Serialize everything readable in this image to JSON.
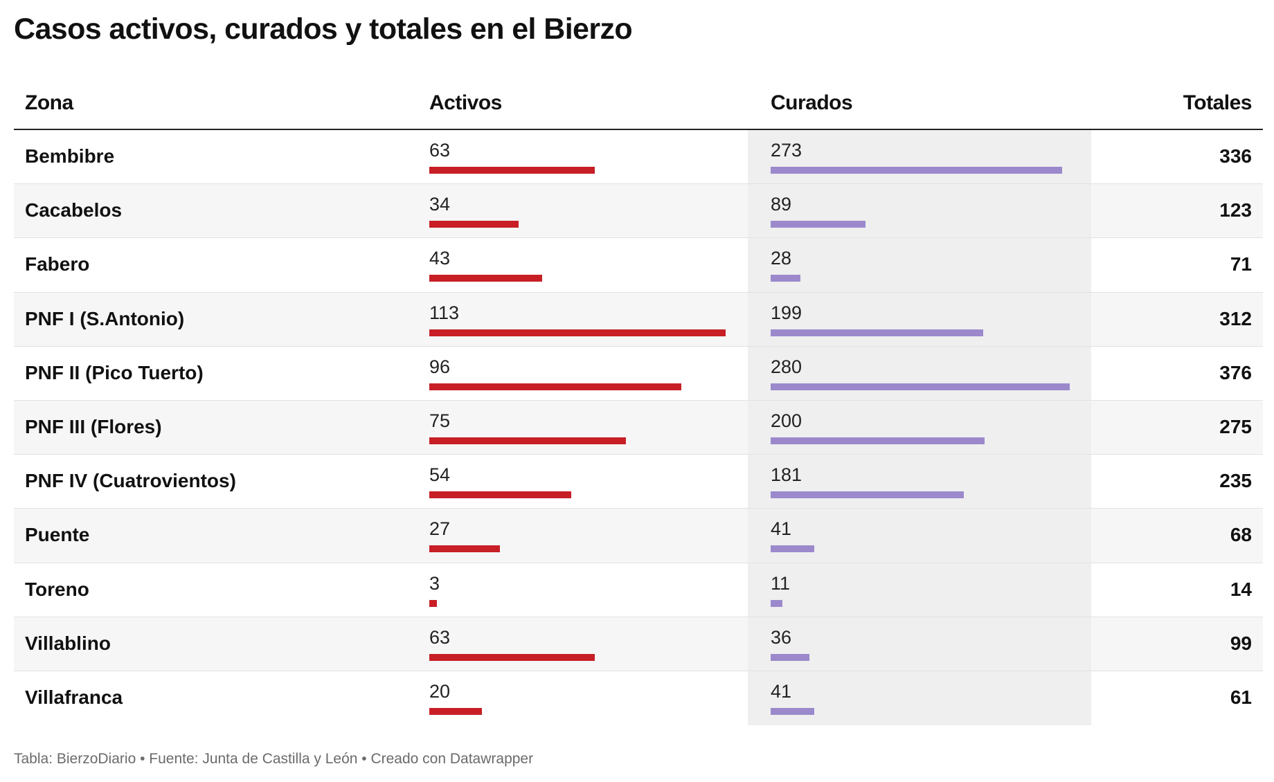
{
  "title": "Casos activos, curados y totales en el Bierzo",
  "columns": {
    "zona": "Zona",
    "activos": "Activos",
    "curados": "Curados",
    "totales": "Totales"
  },
  "colors": {
    "activos": "#c71f25",
    "curados": "#9b89cc"
  },
  "footer": "Tabla: BierzoDiario • Fuente: Junta de Castilla y León • Creado con Datawrapper",
  "chart_data": {
    "type": "table",
    "columns": [
      "Zona",
      "Activos",
      "Curados",
      "Totales"
    ],
    "rows": [
      {
        "zona": "Bembibre",
        "activos": 63,
        "curados": 273,
        "totales": 336
      },
      {
        "zona": "Cacabelos",
        "activos": 34,
        "curados": 89,
        "totales": 123
      },
      {
        "zona": "Fabero",
        "activos": 43,
        "curados": 28,
        "totales": 71
      },
      {
        "zona": "PNF I (S.Antonio)",
        "activos": 113,
        "curados": 199,
        "totales": 312
      },
      {
        "zona": "PNF II (Pico Tuerto)",
        "activos": 96,
        "curados": 280,
        "totales": 376
      },
      {
        "zona": "PNF III (Flores)",
        "activos": 75,
        "curados": 200,
        "totales": 275
      },
      {
        "zona": "PNF IV (Cuatrovientos)",
        "activos": 54,
        "curados": 181,
        "totales": 235
      },
      {
        "zona": "Puente",
        "activos": 27,
        "curados": 41,
        "totales": 68
      },
      {
        "zona": "Toreno",
        "activos": 3,
        "curados": 11,
        "totales": 14
      },
      {
        "zona": "Villablino",
        "activos": 63,
        "curados": 36,
        "totales": 99
      },
      {
        "zona": "Villafranca",
        "activos": 20,
        "curados": 41,
        "totales": 61
      }
    ]
  }
}
